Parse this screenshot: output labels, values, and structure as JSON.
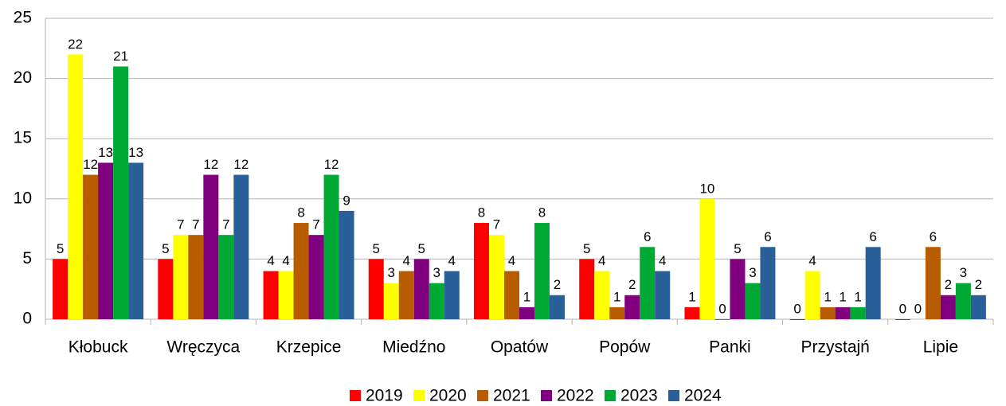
{
  "chart_data": {
    "type": "bar",
    "categories": [
      "Kłobuck",
      "Wręczyca",
      "Krzepice",
      "Miedźno",
      "Opatów",
      "Popów",
      "Panki",
      "Przystajń",
      "Lipie"
    ],
    "series": [
      {
        "name": "2019",
        "color": "#ff0000",
        "values": [
          5,
          5,
          4,
          5,
          8,
          5,
          1,
          0,
          0
        ]
      },
      {
        "name": "2020",
        "color": "#ffff00",
        "values": [
          22,
          7,
          4,
          3,
          7,
          4,
          10,
          4,
          0
        ]
      },
      {
        "name": "2021",
        "color": "#b85c00",
        "values": [
          12,
          7,
          8,
          4,
          4,
          1,
          0,
          1,
          6
        ]
      },
      {
        "name": "2022",
        "color": "#800080",
        "values": [
          13,
          12,
          7,
          5,
          1,
          2,
          5,
          1,
          2
        ]
      },
      {
        "name": "2023",
        "color": "#00a933",
        "values": [
          21,
          7,
          12,
          3,
          8,
          6,
          3,
          1,
          3
        ]
      },
      {
        "name": "2024",
        "color": "#2a6099",
        "values": [
          13,
          12,
          9,
          4,
          2,
          4,
          6,
          6,
          2
        ]
      }
    ],
    "ylim": [
      0,
      25
    ],
    "yticks": [
      0,
      5,
      10,
      15,
      20,
      25
    ],
    "grid": true,
    "legend": "bottom"
  }
}
